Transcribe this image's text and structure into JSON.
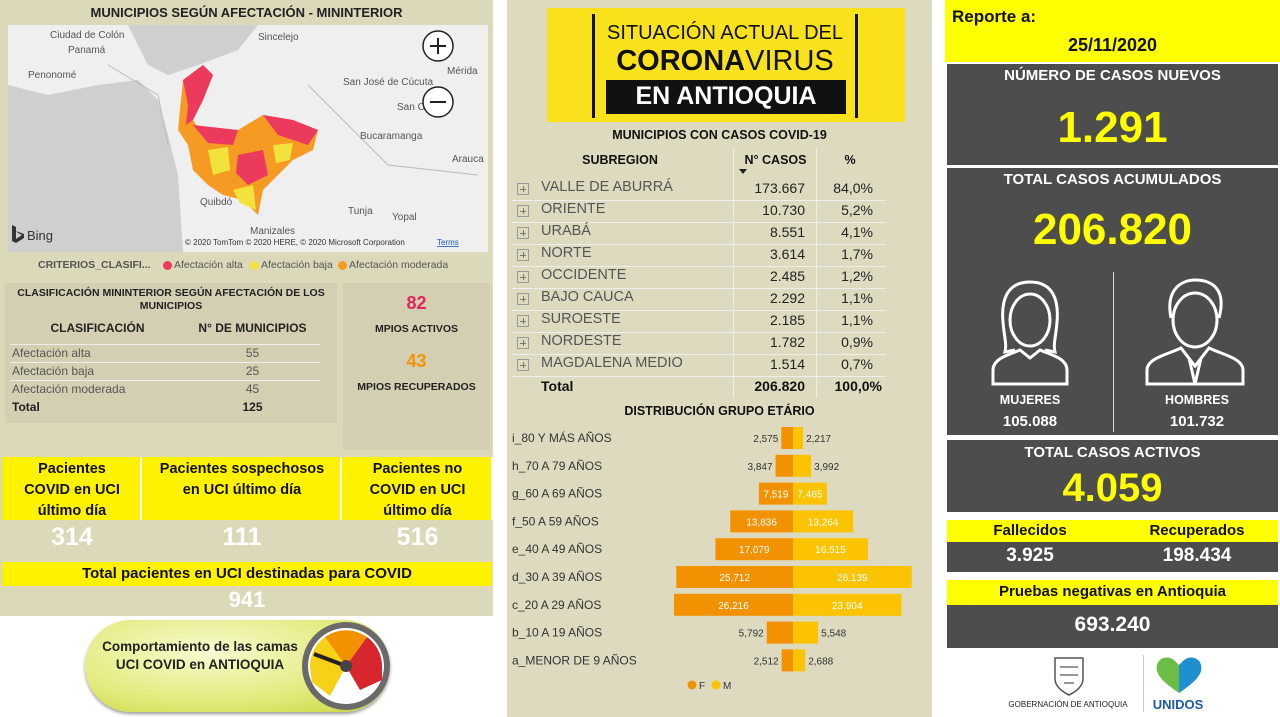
{
  "map": {
    "title": "MUNICIPIOS SEGÚN AFECTACIÓN - MININTERIOR",
    "places": [
      "Ciudad de Colón",
      "Panamá",
      "Penonomé",
      "Sincelejo",
      "Mérida",
      "San José de Cúcuta",
      "San Cr",
      "Bucaramanga",
      "Arauca",
      "Quibdó",
      "Tunja",
      "Yopal",
      "Manizales"
    ],
    "provider": "Bing",
    "attribution": "© 2020 TomTom © 2020 HERE, © 2020 Microsoft Corporation",
    "terms": "Terms"
  },
  "legend": {
    "title": "CRITERIOS_CLASIFI...",
    "items": [
      {
        "label": "Afectación alta",
        "color": "#ec3a5e"
      },
      {
        "label": "Afectación baja",
        "color": "#f4e23c"
      },
      {
        "label": "Afectación moderada",
        "color": "#f59a23"
      }
    ]
  },
  "classification": {
    "title": "CLASIFICACIÓN MININTERIOR SEGÚN AFECTACIÓN DE LOS MUNICIPIOS",
    "headers": [
      "CLASIFICACIÓN",
      "N° DE MUNICIPIOS"
    ],
    "rows": [
      [
        "Afectación alta",
        55
      ],
      [
        "Afectación baja",
        25
      ],
      [
        "Afectación moderada",
        45
      ]
    ],
    "total": [
      "Total",
      125
    ]
  },
  "municipalities": {
    "active": 82,
    "active_label": "MPIOS ACTIVOS",
    "recovered": 43,
    "recovered_label": "MPIOS RECUPERADOS"
  },
  "icu": {
    "boxes": [
      {
        "label": "Pacientes COVID en UCI último día",
        "value": 314
      },
      {
        "label": "Pacientes sospechosos en UCI último día",
        "value": 111
      },
      {
        "label": "Pacientes no COVID en UCI último día",
        "value": 516
      }
    ],
    "total_label": "Total pacientes en UCI destinadas para COVID",
    "total": 941,
    "button": "Comportamiento de las camas UCI COVID en ANTIOQUIA"
  },
  "banner": {
    "line1": "SITUACIÓN ACTUAL DEL",
    "corona": "CORONA",
    "virus": "VIRUS",
    "line3": "EN ANTIOQUIA"
  },
  "subregions": {
    "title": "MUNICIPIOS CON CASOS COVID-19",
    "headers": [
      "SUBREGION",
      "N° CASOS",
      "%"
    ],
    "rows": [
      [
        "VALLE DE ABURRÁ",
        "173.667",
        "84,0%"
      ],
      [
        "ORIENTE",
        "10.730",
        "5,2%"
      ],
      [
        "URABÁ",
        "8.551",
        "4,1%"
      ],
      [
        "NORTE",
        "3.614",
        "1,7%"
      ],
      [
        "OCCIDENTE",
        "2.485",
        "1,2%"
      ],
      [
        "BAJO CAUCA",
        "2.292",
        "1,1%"
      ],
      [
        "SUROESTE",
        "2.185",
        "1,1%"
      ],
      [
        "NORDESTE",
        "1.782",
        "0,9%"
      ],
      [
        "MAGDALENA MEDIO",
        "1.514",
        "0,7%"
      ]
    ],
    "total": [
      "Total",
      "206.820",
      "100,0%"
    ]
  },
  "age_distribution": {
    "type": "pyramid",
    "title": "DISTRIBUCIÓN GRUPO ETÁRIO",
    "categories": [
      "i_80 Y MÁS AÑOS",
      "h_70 A 79 AÑOS",
      "g_60 A 69 AÑOS",
      "f_50 A 59 AÑOS",
      "e_40 A 49 AÑOS",
      "d_30 A 39 AÑOS",
      "c_20 A 29 AÑOS",
      "b_10 A 19 AÑOS",
      "a_MENOR DE 9 AÑOS"
    ],
    "series": [
      {
        "name": "F",
        "color": "#f39200",
        "values": [
          2575,
          3847,
          7519,
          13836,
          17079,
          25712,
          26216,
          5792,
          2512
        ],
        "value_labels": [
          "2,575",
          "3,847",
          "7,519",
          "13,836",
          "17,079",
          "25,712",
          "26,216",
          "5,792",
          "2,512"
        ]
      },
      {
        "name": "M",
        "color": "#fcc400",
        "values": [
          2217,
          3992,
          7465,
          13264,
          16515,
          26139,
          23904,
          5548,
          2688
        ],
        "value_labels": [
          "2,217",
          "3,992",
          "7,465",
          "13,264",
          "16,515",
          "26,139",
          "23,904",
          "5,548",
          "2,688"
        ]
      }
    ]
  },
  "report": {
    "label": "Reporte a:",
    "date": "25/11/2020",
    "new_cases_label": "NÚMERO DE CASOS NUEVOS",
    "new_cases": "1.291",
    "total_label": "TOTAL CASOS ACUMULADOS",
    "total": "206.820",
    "women_label": "MUJERES",
    "women": "105.088",
    "men_label": "HOMBRES",
    "men": "101.732",
    "active_label": "TOTAL CASOS ACTIVOS",
    "active": "4.059",
    "deaths_label": "Fallecidos",
    "deaths": "3.925",
    "recovered_label": "Recuperados",
    "recovered": "198.434",
    "negative_label": "Pruebas negativas en Antioquia",
    "negative": "693.240",
    "logo_gov": "GOBERNACIÓN DE ANTIOQUIA",
    "logo_unidos": "UNIDOS"
  }
}
